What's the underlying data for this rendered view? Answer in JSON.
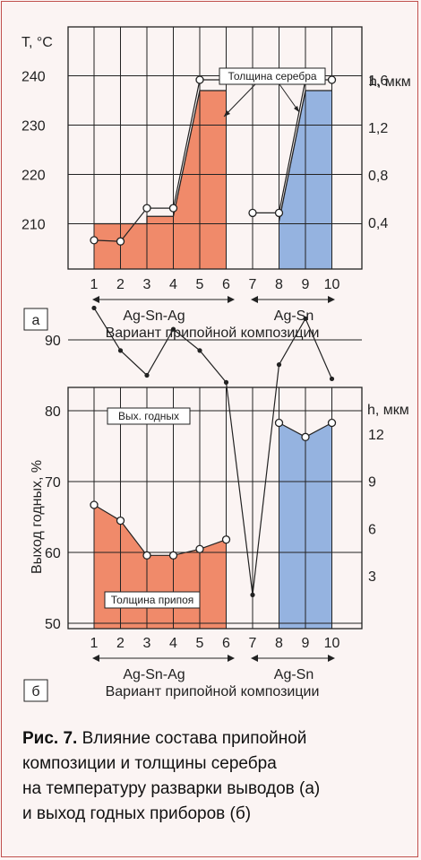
{
  "chart_data": [
    {
      "type": "bar+line",
      "panel_label": "а",
      "y_left_label": "T, °C",
      "y_right_label": "h, мкм",
      "xlabel": "Вариант припойной композиции",
      "x_ticks": [
        "1",
        "2",
        "3",
        "4",
        "5",
        "6",
        "7",
        "8",
        "9",
        "10"
      ],
      "y_left_ticks": [
        "240",
        "230",
        "220",
        "210"
      ],
      "y_right_ticks": [
        "1,6",
        "1,2",
        "0,8",
        "0,4"
      ],
      "group_labels": [
        "Ag-Sn-Ag",
        "Ag-Sn"
      ],
      "annotation": "Толщина серебра",
      "ylim": [
        201,
        245
      ],
      "bars_ag_sn_ag": [
        {
          "x": 1,
          "y": 210
        },
        {
          "x": 2,
          "y": 210
        },
        {
          "x": 3,
          "y": 210
        },
        {
          "x": 3,
          "y": 211.5
        },
        {
          "x": 4,
          "y": 211.5
        },
        {
          "x": 5,
          "y": 237
        },
        {
          "x": 6,
          "y": 237
        }
      ],
      "bars_ag_sn": [
        {
          "x": 8,
          "y": 210.5
        },
        {
          "x": 9,
          "y": 237
        },
        {
          "x": 10,
          "y": 237
        }
      ],
      "silver_thickness_points": [
        {
          "x": 1,
          "y": 0.25
        },
        {
          "x": 2,
          "y": 0.24
        },
        {
          "x": 3,
          "y": 0.52
        },
        {
          "x": 4,
          "y": 0.52
        },
        {
          "x": 5,
          "y": 1.6
        },
        {
          "x": 6,
          "y": 1.6
        },
        {
          "x": 7,
          "y": 0.48
        },
        {
          "x": 8,
          "y": 0.48
        },
        {
          "x": 9,
          "y": 1.6
        },
        {
          "x": 10,
          "y": 1.6
        }
      ]
    },
    {
      "type": "bar+line",
      "panel_label": "б",
      "y_left_label": "Выход годных, %",
      "y_right_label": "h, мкм",
      "xlabel": "Вариант припойной композиции",
      "x_ticks": [
        "1",
        "2",
        "3",
        "4",
        "5",
        "6",
        "7",
        "8",
        "9",
        "10"
      ],
      "y_left_ticks": [
        "90",
        "80",
        "70",
        "60",
        "50"
      ],
      "y_right_ticks": [
        "12",
        "9",
        "6",
        "3"
      ],
      "group_labels": [
        "Ag-Sn-Ag",
        "Ag-Sn"
      ],
      "legend_yield": "Вых. годных",
      "legend_solder": "Толщина припоя",
      "ylim": [
        50,
        100
      ],
      "solder_thickness": [
        {
          "x": 1,
          "y": 7.5
        },
        {
          "x": 2,
          "y": 6.5
        },
        {
          "x": 3,
          "y": 4.3
        },
        {
          "x": 4,
          "y": 4.3
        },
        {
          "x": 5,
          "y": 4.7
        },
        {
          "x": 6,
          "y": 5.3
        },
        {
          "x": 8,
          "y": 12.7
        },
        {
          "x": 9,
          "y": 11.8
        },
        {
          "x": 10,
          "y": 12.7
        }
      ],
      "yield_percent": [
        {
          "x": 1,
          "y": 94.5
        },
        {
          "x": 2,
          "y": 88.5
        },
        {
          "x": 3,
          "y": 85
        },
        {
          "x": 4,
          "y": 91.5
        },
        {
          "x": 5,
          "y": 88.5
        },
        {
          "x": 6,
          "y": 84
        },
        {
          "x": 7,
          "y": 54
        },
        {
          "x": 8,
          "y": 86.5
        },
        {
          "x": 9,
          "y": 93
        },
        {
          "x": 10,
          "y": 84.5
        }
      ]
    }
  ],
  "caption": {
    "prefix": "Рис. 7.",
    "lines": [
      "Влияние состава припойной",
      "композиции и толщины серебра",
      "на температуру разварки выводов (а)",
      "и выход годных приборов (б)"
    ]
  },
  "colors": {
    "orange": "#f08a6a",
    "blue": "#95b3e0",
    "frame": "#c0504d"
  }
}
